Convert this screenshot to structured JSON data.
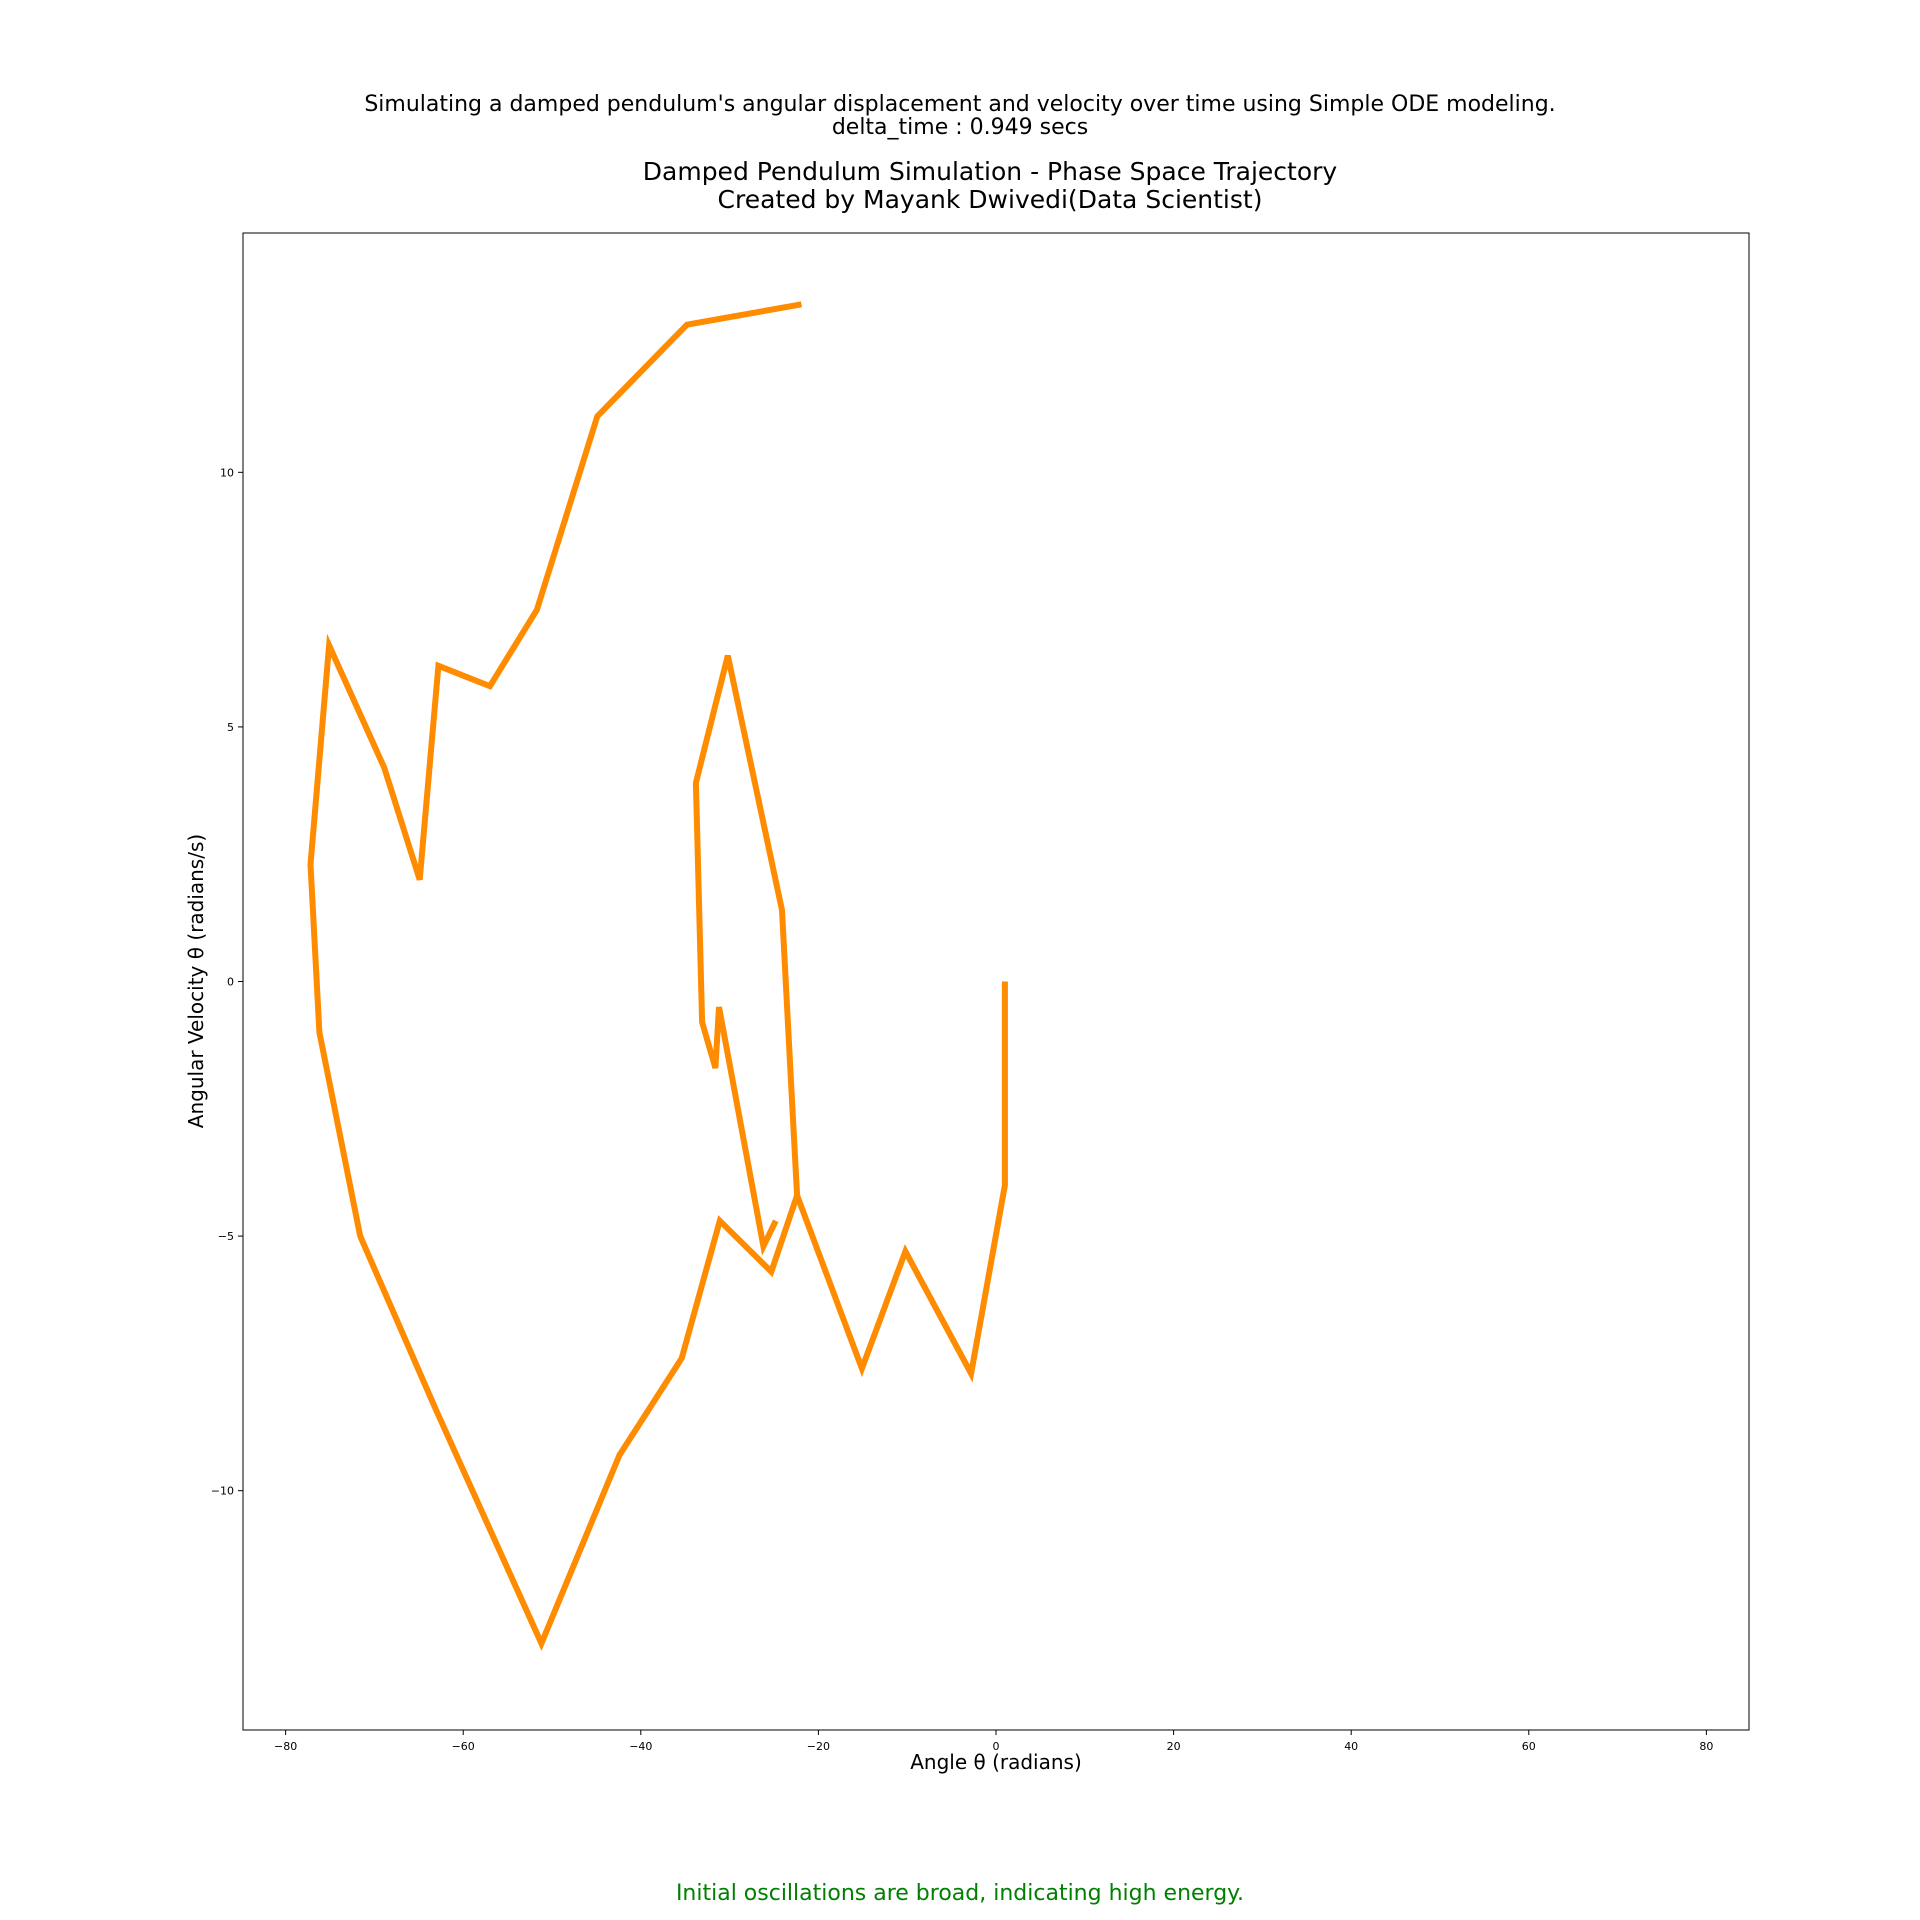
{
  "suptitle": {
    "line1": "Simulating a damped pendulum's angular displacement and velocity over time using Simple ODE modeling.",
    "line2": "delta_time : 0.949 secs"
  },
  "annotation": {
    "text": "Initial oscillations are broad, indicating high energy.",
    "color": "#008000"
  },
  "chart_data": {
    "type": "line",
    "title_lines": [
      "Damped Pendulum Simulation - Phase Space Trajectory",
      "Created by Mayank Dwivedi(Data Scientist)"
    ],
    "xlabel": "Angle θ (radians)",
    "ylabel": "Angular Velocity θ (radians/s)",
    "xlim": [
      -84.8,
      84.8
    ],
    "ylim": [
      -14.7,
      14.7
    ],
    "xticks": [
      -80,
      -60,
      -40,
      -20,
      0,
      20,
      40,
      60,
      80
    ],
    "xtick_labels": [
      "−80",
      "−60",
      "−40",
      "−20",
      "0",
      "20",
      "40",
      "60",
      "80"
    ],
    "yticks": [
      -10,
      -5,
      0,
      5,
      10
    ],
    "ytick_labels": [
      "−10",
      "−5",
      "0",
      "5",
      "10"
    ],
    "grid": false,
    "line_color": "#ff8c00",
    "series": [
      {
        "x": [
          1.0,
          1.0,
          -2.8,
          -10.2,
          -15.1,
          -22.4,
          -25.3,
          -31.1,
          -35.4,
          -42.4,
          -51.2,
          -63.1,
          -71.6,
          -76.2,
          -77.2,
          -75.1,
          -68.9,
          -64.9,
          -62.8,
          -57.0,
          -51.7,
          -44.9,
          -34.8,
          -21.9
        ],
        "y": [
          0.0,
          -4.0,
          -7.7,
          -5.3,
          -7.6,
          -4.2,
          -5.7,
          -4.7,
          -7.4,
          -9.3,
          -13.0,
          -8.4,
          -5.0,
          -1.0,
          2.3,
          6.6,
          4.2,
          2.0,
          6.2,
          5.8,
          7.3,
          11.1,
          12.9,
          13.3
        ]
      },
      {
        "x": [
          -22.4,
          -22.9,
          -24.1,
          -30.2,
          -33.8,
          -33.1,
          -31.6,
          -31.2,
          -26.2,
          -24.8
        ],
        "y": [
          -4.2,
          -2.6,
          1.4,
          6.4,
          3.9,
          -0.8,
          -1.7,
          -0.5,
          -5.2,
          -4.7
        ]
      }
    ]
  }
}
